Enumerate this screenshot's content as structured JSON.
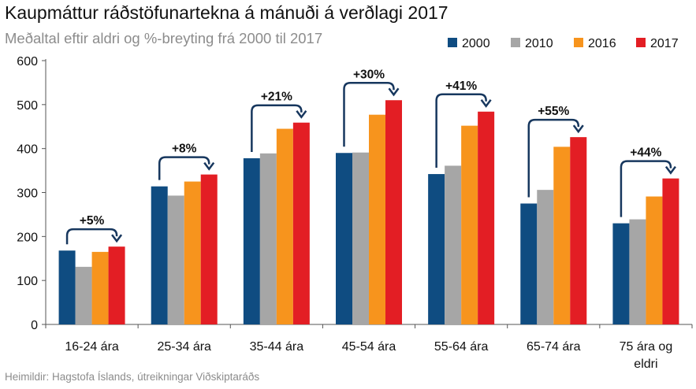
{
  "title": "Kaupmáttur ráðstöfunartekna á mánuði á verðlagi 2017",
  "subtitle": "Meðaltal eftir aldri og %-breyting frá 2000 til 2017",
  "source": "Heimildir: Hagstofa Íslands, útreikningar Viðskiptaráðs",
  "chart_data": {
    "type": "bar",
    "categories": [
      [
        "16-24 ára"
      ],
      [
        "25-34 ára"
      ],
      [
        "35-44 ára"
      ],
      [
        "45-54 ára"
      ],
      [
        "55-64 ára"
      ],
      [
        "65-74 ára"
      ],
      [
        "75 ára og",
        "eldri"
      ]
    ],
    "series": [
      {
        "name": "2000",
        "color": "#0f4c81",
        "values": [
          168,
          314,
          378,
          390,
          342,
          275,
          230
        ]
      },
      {
        "name": "2010",
        "color": "#a6a6a6",
        "values": [
          131,
          293,
          389,
          391,
          361,
          306,
          239
        ]
      },
      {
        "name": "2016",
        "color": "#f7941d",
        "values": [
          165,
          325,
          445,
          477,
          452,
          404,
          291
        ]
      },
      {
        "name": "2017",
        "color": "#e31e24",
        "values": [
          177,
          341,
          459,
          510,
          484,
          426,
          332
        ]
      }
    ],
    "annotations": [
      "+5%",
      "+8%",
      "+21%",
      "+30%",
      "+41%",
      "+55%",
      "+44%"
    ],
    "annotation_color": "#17375e",
    "ylim": [
      0,
      600
    ],
    "yticks": [
      0,
      100,
      200,
      300,
      400,
      500,
      600
    ],
    "grid": false,
    "legend": "top-right"
  }
}
